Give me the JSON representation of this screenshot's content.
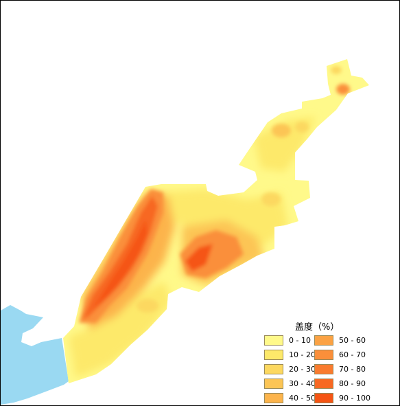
{
  "legend": {
    "title": "盖度（%）",
    "items": [
      {
        "label": "0 - 10",
        "color": "#fff98a"
      },
      {
        "label": "10 - 20",
        "color": "#fde96a"
      },
      {
        "label": "20 - 30",
        "color": "#fcd860"
      },
      {
        "label": "30 - 40",
        "color": "#fcc555"
      },
      {
        "label": "40 - 50",
        "color": "#fcb44c"
      },
      {
        "label": "50 - 60",
        "color": "#fba244"
      },
      {
        "label": "60 - 70",
        "color": "#fa8f3a"
      },
      {
        "label": "70 - 80",
        "color": "#f97b2e"
      },
      {
        "label": "80 - 90",
        "color": "#f76822"
      },
      {
        "label": "90 - 100",
        "color": "#f55414"
      }
    ]
  },
  "colors": {
    "water": "#9ad9f2",
    "frame": "#000000",
    "background": "#ffffff"
  }
}
